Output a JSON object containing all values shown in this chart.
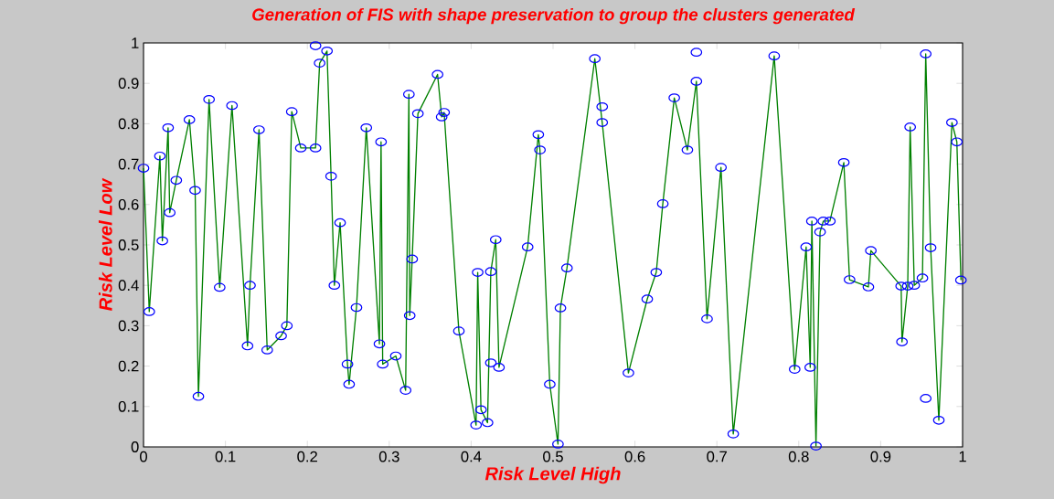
{
  "chart_data": {
    "type": "scatter",
    "title": "Generation of FIS with shape preservation to group the clusters generated",
    "xlabel": "Risk Level High",
    "ylabel": "Risk Level Low",
    "xlim": [
      0,
      1
    ],
    "ylim": [
      0,
      1
    ],
    "xticks": [
      0,
      0.1,
      0.2,
      0.3,
      0.4,
      0.5,
      0.6,
      0.7,
      0.8,
      0.9,
      1
    ],
    "yticks": [
      0,
      0.1,
      0.2,
      0.3,
      0.4,
      0.5,
      0.6,
      0.7,
      0.8,
      0.9,
      1
    ],
    "line_style": "solid",
    "grid": false,
    "series": [
      {
        "type": "line",
        "color": "#008000",
        "marker": "none",
        "x": [
          0,
          0.007,
          0.02,
          0.023,
          0.03,
          0.032,
          0.04,
          0.056,
          0.063,
          0.067,
          0.08,
          0.093,
          0.108,
          0.127,
          0.13,
          0.141,
          0.151,
          0.168,
          0.175,
          0.181,
          0.192,
          0.21,
          0.215,
          0.224,
          0.229,
          0.233,
          0.24,
          0.249,
          0.251,
          0.26,
          0.272,
          0.288,
          0.29,
          0.292,
          0.308,
          0.32,
          0.324,
          0.325,
          0.328,
          0.335,
          0.359,
          0.364,
          0.367,
          0.385,
          0.406,
          0.408,
          0.412,
          0.42,
          0.424,
          0.43,
          0.434,
          0.469,
          0.482,
          0.484,
          0.496,
          0.506,
          0.509,
          0.517,
          0.551,
          0.56,
          0.592,
          0.615,
          0.626,
          0.634,
          0.648,
          0.664,
          0.675,
          0.688,
          0.705,
          0.72,
          0.77,
          0.795,
          0.809,
          0.814,
          0.816,
          0.821,
          0.826,
          0.83,
          0.838,
          0.855,
          0.862,
          0.885,
          0.888,
          0.925,
          0.926,
          0.933,
          0.936,
          0.941,
          0.951,
          0.955,
          0.961,
          0.971,
          0.987,
          0.993,
          0.998
        ],
        "values": [
          0.69,
          0.335,
          0.72,
          0.51,
          0.79,
          0.58,
          0.66,
          0.81,
          0.635,
          0.125,
          0.86,
          0.395,
          0.845,
          0.25,
          0.4,
          0.785,
          0.24,
          0.275,
          0.3,
          0.83,
          0.74,
          0.74,
          0.95,
          0.98,
          0.67,
          0.4,
          0.555,
          0.205,
          0.155,
          0.345,
          0.79,
          0.255,
          0.755,
          0.205,
          0.225,
          0.14,
          0.873,
          0.325,
          0.465,
          0.825,
          0.922,
          0.817,
          0.828,
          0.287,
          0.054,
          0.432,
          0.092,
          0.06,
          0.434,
          0.513,
          0.197,
          0.495,
          0.773,
          0.735,
          0.155,
          0.007,
          0.344,
          0.443,
          0.961,
          0.803,
          0.183,
          0.366,
          0.432,
          0.602,
          0.864,
          0.735,
          0.905,
          0.317,
          0.692,
          0.032,
          0.968,
          0.192,
          0.495,
          0.197,
          0.559,
          0.002,
          0.532,
          0.559,
          0.559,
          0.704,
          0.414,
          0.396,
          0.486,
          0.398,
          0.26,
          0.398,
          0.792,
          0.4,
          0.418,
          0.973,
          0.493,
          0.066,
          0.803,
          0.755,
          0.413
        ]
      },
      {
        "color": "#0000ff",
        "marker": "circle",
        "x": [
          0,
          0.007,
          0.02,
          0.023,
          0.03,
          0.032,
          0.04,
          0.056,
          0.063,
          0.067,
          0.08,
          0.093,
          0.108,
          0.127,
          0.13,
          0.141,
          0.151,
          0.168,
          0.175,
          0.181,
          0.192,
          0.21,
          0.21,
          0.215,
          0.224,
          0.229,
          0.233,
          0.24,
          0.249,
          0.251,
          0.26,
          0.272,
          0.288,
          0.29,
          0.292,
          0.308,
          0.32,
          0.324,
          0.325,
          0.328,
          0.335,
          0.359,
          0.364,
          0.367,
          0.385,
          0.406,
          0.408,
          0.412,
          0.42,
          0.424,
          0.424,
          0.43,
          0.434,
          0.469,
          0.482,
          0.484,
          0.496,
          0.506,
          0.509,
          0.517,
          0.551,
          0.56,
          0.56,
          0.592,
          0.615,
          0.626,
          0.634,
          0.648,
          0.664,
          0.675,
          0.675,
          0.688,
          0.705,
          0.72,
          0.77,
          0.795,
          0.809,
          0.814,
          0.816,
          0.821,
          0.826,
          0.83,
          0.838,
          0.855,
          0.862,
          0.885,
          0.888,
          0.925,
          0.926,
          0.933,
          0.936,
          0.941,
          0.951,
          0.955,
          0.955,
          0.961,
          0.971,
          0.987,
          0.993,
          0.998
        ],
        "values": [
          0.69,
          0.335,
          0.72,
          0.51,
          0.79,
          0.58,
          0.66,
          0.81,
          0.635,
          0.125,
          0.86,
          0.395,
          0.845,
          0.25,
          0.4,
          0.785,
          0.24,
          0.275,
          0.3,
          0.83,
          0.74,
          0.74,
          0.993,
          0.95,
          0.98,
          0.67,
          0.4,
          0.555,
          0.205,
          0.155,
          0.345,
          0.79,
          0.255,
          0.755,
          0.205,
          0.225,
          0.14,
          0.873,
          0.325,
          0.465,
          0.825,
          0.922,
          0.817,
          0.828,
          0.287,
          0.054,
          0.432,
          0.092,
          0.06,
          0.434,
          0.208,
          0.513,
          0.197,
          0.495,
          0.773,
          0.735,
          0.155,
          0.007,
          0.344,
          0.443,
          0.961,
          0.842,
          0.803,
          0.183,
          0.366,
          0.432,
          0.602,
          0.864,
          0.735,
          0.977,
          0.905,
          0.317,
          0.692,
          0.032,
          0.968,
          0.192,
          0.495,
          0.197,
          0.559,
          0.002,
          0.532,
          0.559,
          0.559,
          0.704,
          0.414,
          0.396,
          0.486,
          0.398,
          0.26,
          0.398,
          0.792,
          0.4,
          0.418,
          0.973,
          0.12,
          0.493,
          0.066,
          0.803,
          0.755,
          0.413
        ]
      }
    ]
  }
}
